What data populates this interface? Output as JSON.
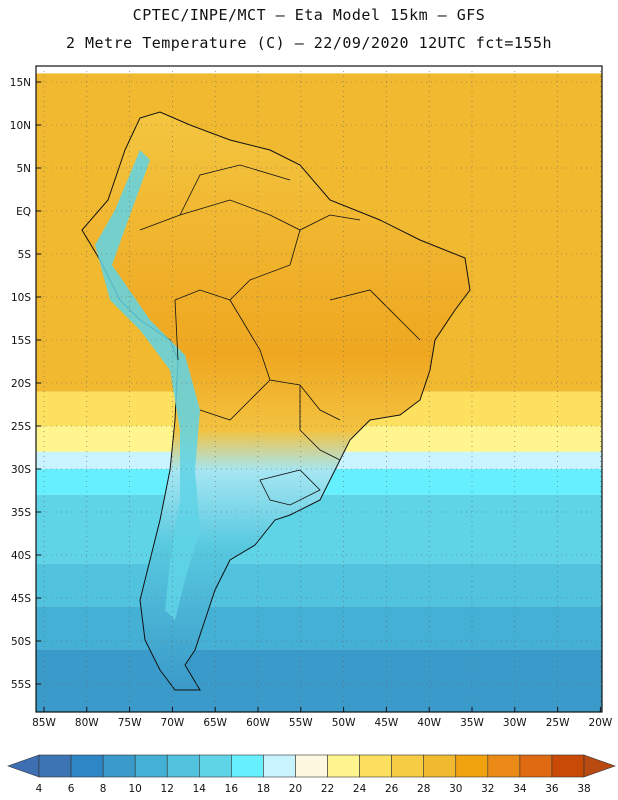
{
  "header": {
    "line1": "CPTEC/INPE/MCT –  Eta Model 15km – GFS",
    "line2": "2 Metre Temperature (C) – 22/09/2020 12UTC fct=155h"
  },
  "map": {
    "lat_labels": [
      "15N",
      "10N",
      "5N",
      "EQ",
      "5S",
      "10S",
      "15S",
      "20S",
      "25S",
      "30S",
      "35S",
      "40S",
      "45S",
      "50S",
      "55S"
    ],
    "lon_labels": [
      "85W",
      "80W",
      "75W",
      "70W",
      "65W",
      "60W",
      "55W",
      "50W",
      "45W",
      "40W",
      "35W",
      "30W",
      "25W",
      "20W"
    ],
    "ocean_bands": [
      {
        "from_lat": 16,
        "to_lat": -21,
        "temp": 28
      },
      {
        "from_lat": -21,
        "to_lat": -25,
        "temp": 24
      },
      {
        "from_lat": -25,
        "to_lat": -28,
        "temp": 22
      },
      {
        "from_lat": -28,
        "to_lat": -30,
        "temp": 18
      },
      {
        "from_lat": -30,
        "to_lat": -33,
        "temp": 16
      },
      {
        "from_lat": -33,
        "to_lat": -41,
        "temp": 14
      },
      {
        "from_lat": -41,
        "to_lat": -46,
        "temp": 12
      },
      {
        "from_lat": -46,
        "to_lat": -51,
        "temp": 10
      },
      {
        "from_lat": -51,
        "to_lat": -59,
        "temp": 8
      }
    ]
  },
  "legend": {
    "ticks": [
      "4",
      "6",
      "8",
      "10",
      "12",
      "14",
      "16",
      "18",
      "20",
      "22",
      "24",
      "26",
      "28",
      "30",
      "32",
      "34",
      "36",
      "38"
    ],
    "colors": [
      "#3d74b3",
      "#2f86c6",
      "#3a9ac9",
      "#44b0d6",
      "#52c3df",
      "#5fd4e6",
      "#66f0ff",
      "#c9f3ff",
      "#fff8e0",
      "#fff58f",
      "#fde060",
      "#f7cc45",
      "#f1b92f",
      "#f0a30f",
      "#ec8a17",
      "#e06a12",
      "#c84a06"
    ],
    "left_color": "#3f6fb3",
    "right_color": "#b84a12"
  }
}
